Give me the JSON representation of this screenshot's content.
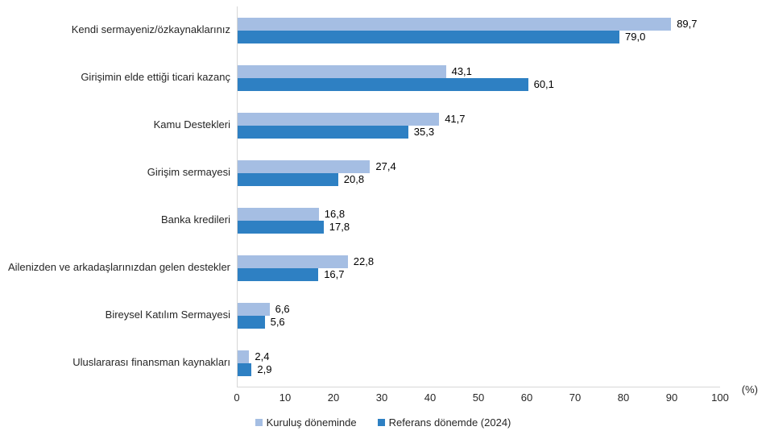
{
  "chart_data": {
    "type": "bar",
    "orientation": "horizontal",
    "title": "",
    "xlabel": "",
    "ylabel": "",
    "axis_unit_label": "(%)",
    "xlim": [
      0,
      100
    ],
    "x_ticks": [
      0,
      10,
      20,
      30,
      40,
      50,
      60,
      70,
      80,
      90,
      100
    ],
    "grid": false,
    "legend_position": "bottom",
    "categories": [
      "Kendi sermayeniz/özkaynaklarınız",
      "Girişimin elde ettiği ticari kazanç",
      "Kamu Destekleri",
      "Girişim sermayesi",
      "Banka kredileri",
      "Ailenizden ve arkadaşlarınızdan gelen destekler",
      "Bireysel Katılım Sermayesi",
      "Uluslararası finansman kaynakları"
    ],
    "series": [
      {
        "name": "Kuruluş döneminde",
        "color": "#a5bee3",
        "values": [
          89.7,
          43.1,
          41.7,
          27.4,
          16.8,
          22.8,
          6.6,
          2.4
        ],
        "labels": [
          "89,7",
          "43,1",
          "41,7",
          "27,4",
          "16,8",
          "22,8",
          "6,6",
          "2,4"
        ]
      },
      {
        "name": "Referans dönemde (2024)",
        "color": "#2e80c3",
        "values": [
          79.0,
          60.1,
          35.3,
          20.8,
          17.8,
          16.7,
          5.6,
          2.9
        ],
        "labels": [
          "79,0",
          "60,1",
          "35,3",
          "20,8",
          "17,8",
          "16,7",
          "5,6",
          "2,9"
        ]
      }
    ]
  },
  "colors": {
    "axis_line": "#d6d6d6",
    "tick_text": "#262626",
    "value_text": "#000000"
  }
}
